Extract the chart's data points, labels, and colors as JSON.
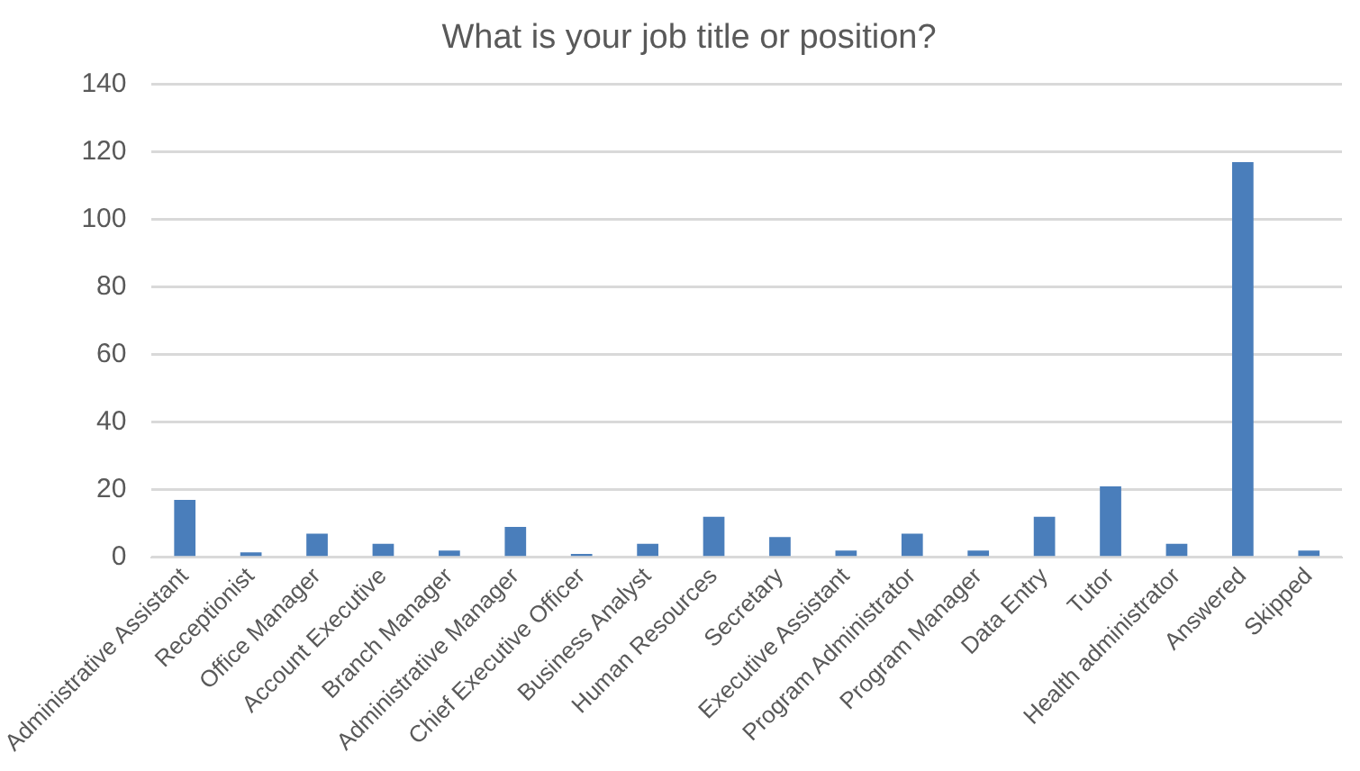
{
  "chart_data": {
    "type": "bar",
    "title": "What is your job title or position?",
    "categories": [
      "Administrative Assistant",
      "Receptionist",
      "Office Manager",
      "Account Executive",
      "Branch Manager",
      "Administrative Manager",
      "Chief Executive Officer",
      "Business Analyst",
      "Human Resources",
      "Secretary",
      "Executive Assistant",
      "Program Administrator",
      "Program Manager",
      "Data Entry",
      "Tutor",
      "Health administrator",
      "Answered",
      "Skipped"
    ],
    "values": [
      17,
      1.5,
      7,
      4,
      2,
      9,
      1,
      4,
      12,
      6,
      2,
      7,
      2,
      12,
      21,
      4,
      117,
      2
    ],
    "color": "#4a7ebb",
    "ylim": [
      0,
      140
    ],
    "yticks": [
      0,
      20,
      40,
      60,
      80,
      100,
      120,
      140
    ],
    "grid": "y"
  }
}
